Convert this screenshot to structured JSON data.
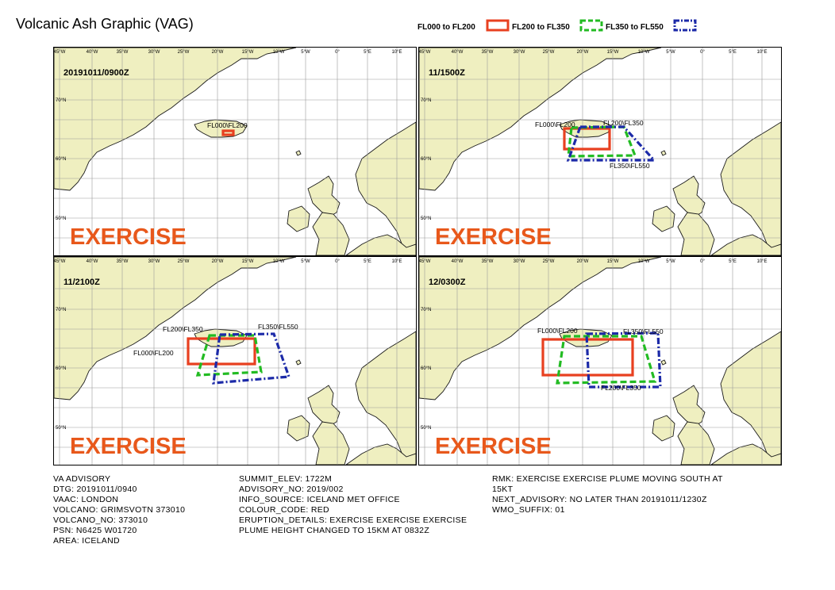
{
  "title": "Volcanic Ash Graphic (VAG)",
  "legend": [
    {
      "label": "FL000 to FL200",
      "color": "#e84020",
      "style": "solid"
    },
    {
      "label": "FL200 to FL350",
      "color": "#22bb22",
      "style": "dash"
    },
    {
      "label": "FL350 to FL550",
      "color": "#1c2aa8",
      "style": "dashdot"
    }
  ],
  "lon_labels": [
    "45°W",
    "40°W",
    "35°W",
    "30°W",
    "25°W",
    "20°W",
    "15°W",
    "10°W",
    "5°W",
    "0°",
    "5°E",
    "10°E"
  ],
  "lat_labels": [
    "70°N",
    "60°N",
    "50°N"
  ],
  "panels": [
    {
      "time": "20191011/0900Z",
      "watermark": "EXERCISE",
      "labels": [
        "FL000\\FL200"
      ]
    },
    {
      "time": "11/1500Z",
      "watermark": "EXERCISE",
      "labels": [
        "FL000\\FL200",
        "FL200\\FL350",
        "FL350\\FL550"
      ]
    },
    {
      "time": "11/2100Z",
      "watermark": "EXERCISE",
      "labels": [
        "FL200\\FL350",
        "FL350\\FL550",
        "FL000\\FL200"
      ]
    },
    {
      "time": "12/0300Z",
      "watermark": "EXERCISE",
      "labels": [
        "FL000\\FL200",
        "FL350\\FL550",
        "FL200\\FL350"
      ]
    }
  ],
  "advisory": {
    "col1": [
      "VA ADVISORY",
      "DTG: 20191011/0940",
      "VAAC: LONDON",
      "VOLCANO: GRIMSVOTN 373010",
      "VOLCANO_NO: 373010",
      "PSN: N6425 W01720",
      "AREA: ICELAND"
    ],
    "col2": [
      "SUMMIT_ELEV: 1722M",
      "ADVISORY_NO: 2019/002",
      "INFO_SOURCE: ICELAND MET OFFICE",
      "COLOUR_CODE: RED",
      "ERUPTION_DETAILS: EXERCISE EXERCISE EXERCISE",
      "PLUME HEIGHT CHANGED TO 15KM AT 0832Z"
    ],
    "col3": [
      "RMK: EXERCISE  EXERCISE PLUME MOVING SOUTH AT",
      "15KT",
      "NEXT_ADVISORY: NO LATER THAN 20191011/1230Z",
      "WMO_SUFFIX: 01"
    ]
  },
  "colors": {
    "land": "#efefc0",
    "water": "#ffffff",
    "grid": "#9a9a9a",
    "watermark": "#e8581b"
  }
}
